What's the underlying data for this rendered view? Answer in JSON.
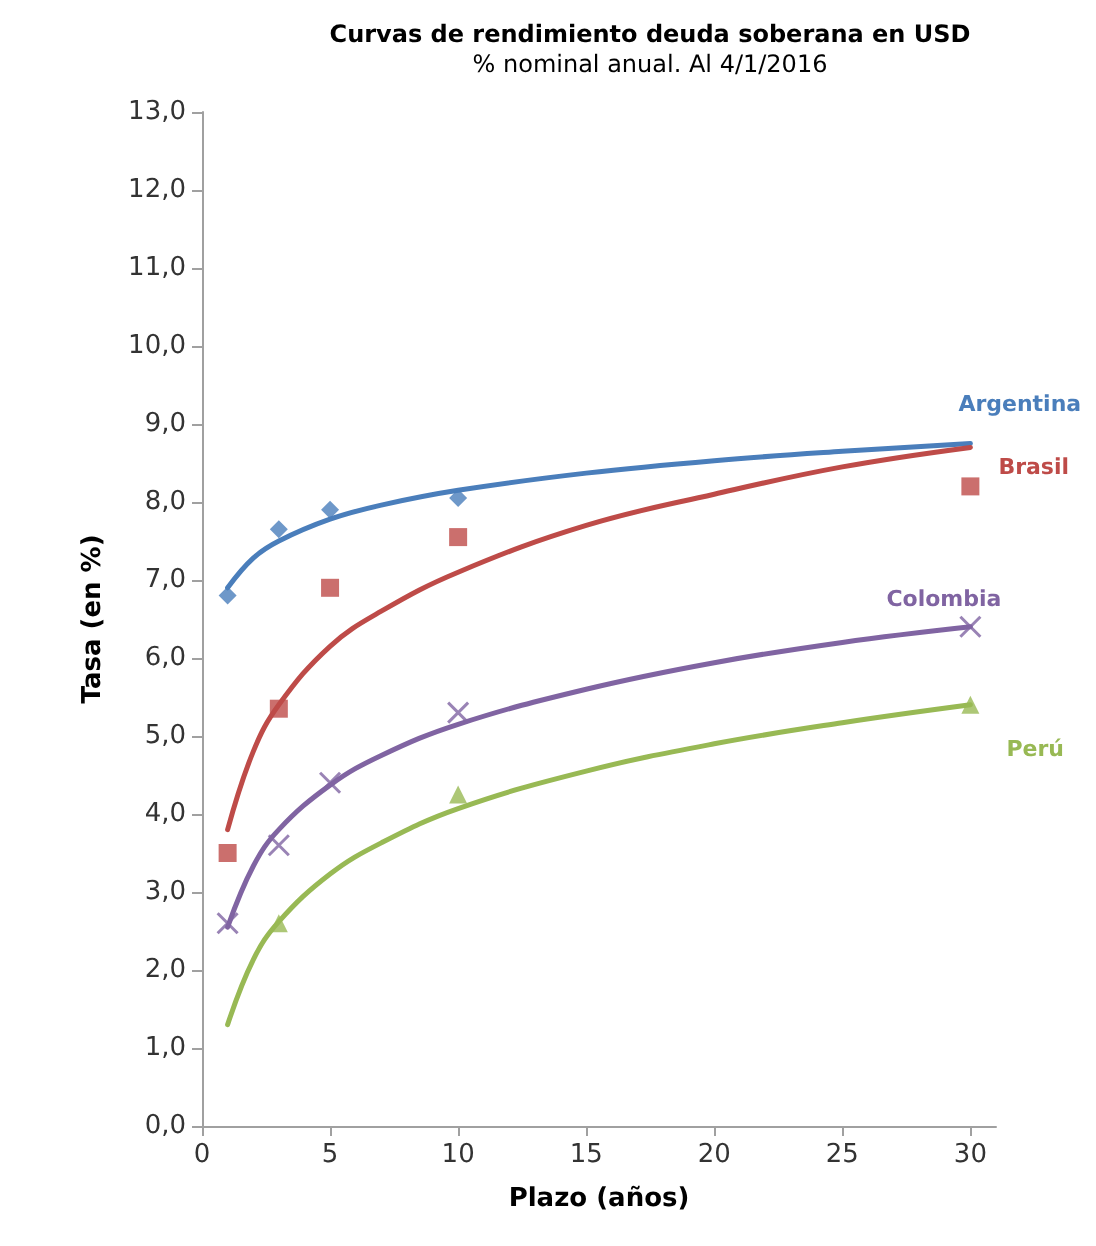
{
  "chart_data": {
    "type": "scatter",
    "title": "Curvas de rendimiento deuda soberana en USD",
    "subtitle": "% nominal anual. Al 4/1/2016",
    "xlabel": "Plazo (años)",
    "ylabel": "Tasa (en %)",
    "xlim": [
      0,
      31
    ],
    "xticks": [
      0,
      5,
      10,
      15,
      20,
      25,
      30
    ],
    "ylim": [
      0,
      13
    ],
    "yticks": [
      {
        "value": 0,
        "label": "0,0"
      },
      {
        "value": 1,
        "label": "1,0"
      },
      {
        "value": 2,
        "label": "2,0"
      },
      {
        "value": 3,
        "label": "3,0"
      },
      {
        "value": 4,
        "label": "4,0"
      },
      {
        "value": 5,
        "label": "5,0"
      },
      {
        "value": 6,
        "label": "6,0"
      },
      {
        "value": 7,
        "label": "7,0"
      },
      {
        "value": 8,
        "label": "8,0"
      },
      {
        "value": 9,
        "label": "9,0"
      },
      {
        "value": 10,
        "label": "10,0"
      },
      {
        "value": 11,
        "label": "11,0"
      },
      {
        "value": 12,
        "label": "12,0"
      },
      {
        "value": 13,
        "label": "13,0"
      }
    ],
    "grid": false,
    "legend": false,
    "series": [
      {
        "color": "#4a7ebb",
        "marker": "diamond",
        "x": [
          1,
          3,
          5,
          10
        ],
        "values": [
          6.8,
          7.65,
          7.9,
          8.05
        ]
      },
      {
        "color": "#be4b48",
        "marker": "square",
        "x": [
          1,
          3,
          5,
          10,
          30
        ],
        "values": [
          3.5,
          5.35,
          6.9,
          7.55,
          8.2
        ]
      },
      {
        "color": "#8064a2",
        "marker": "cross",
        "x": [
          1,
          3,
          5,
          10,
          30
        ],
        "values": [
          2.6,
          3.6,
          4.4,
          5.3,
          6.4
        ]
      },
      {
        "color": "#98b954",
        "marker": "triangle",
        "x": [
          3,
          10,
          30
        ],
        "values": [
          2.6,
          4.25,
          5.4
        ]
      },
      {
        "type": "line",
        "name": "Argentina",
        "color": "#4a7ebb",
        "marker": "none",
        "x": [
          1,
          2,
          3,
          5,
          7,
          10,
          15,
          20,
          25,
          30
        ],
        "values": [
          6.9,
          7.28,
          7.5,
          7.78,
          7.96,
          8.15,
          8.37,
          8.53,
          8.65,
          8.75
        ]
      },
      {
        "type": "line",
        "name": "Brasil",
        "color": "#be4b48",
        "marker": "none",
        "x": [
          1,
          2,
          3,
          5,
          7,
          10,
          15,
          20,
          25,
          30
        ],
        "values": [
          3.8,
          4.8,
          5.4,
          6.15,
          6.6,
          7.1,
          7.7,
          8.1,
          8.45,
          8.7
        ]
      },
      {
        "type": "line",
        "name": "Colombia",
        "color": "#8064a2",
        "marker": "none",
        "x": [
          1,
          2,
          3,
          5,
          7,
          10,
          15,
          20,
          25,
          30
        ],
        "values": [
          2.55,
          3.33,
          3.8,
          4.37,
          4.75,
          5.15,
          5.6,
          5.94,
          6.2,
          6.4
        ]
      },
      {
        "type": "line",
        "name": "Perú",
        "color": "#98b954",
        "marker": "none",
        "x": [
          1,
          2,
          3,
          5,
          7,
          10,
          15,
          20,
          25,
          30
        ],
        "values": [
          1.3,
          2.13,
          2.62,
          3.23,
          3.63,
          4.07,
          4.55,
          4.9,
          5.17,
          5.4
        ]
      }
    ]
  }
}
